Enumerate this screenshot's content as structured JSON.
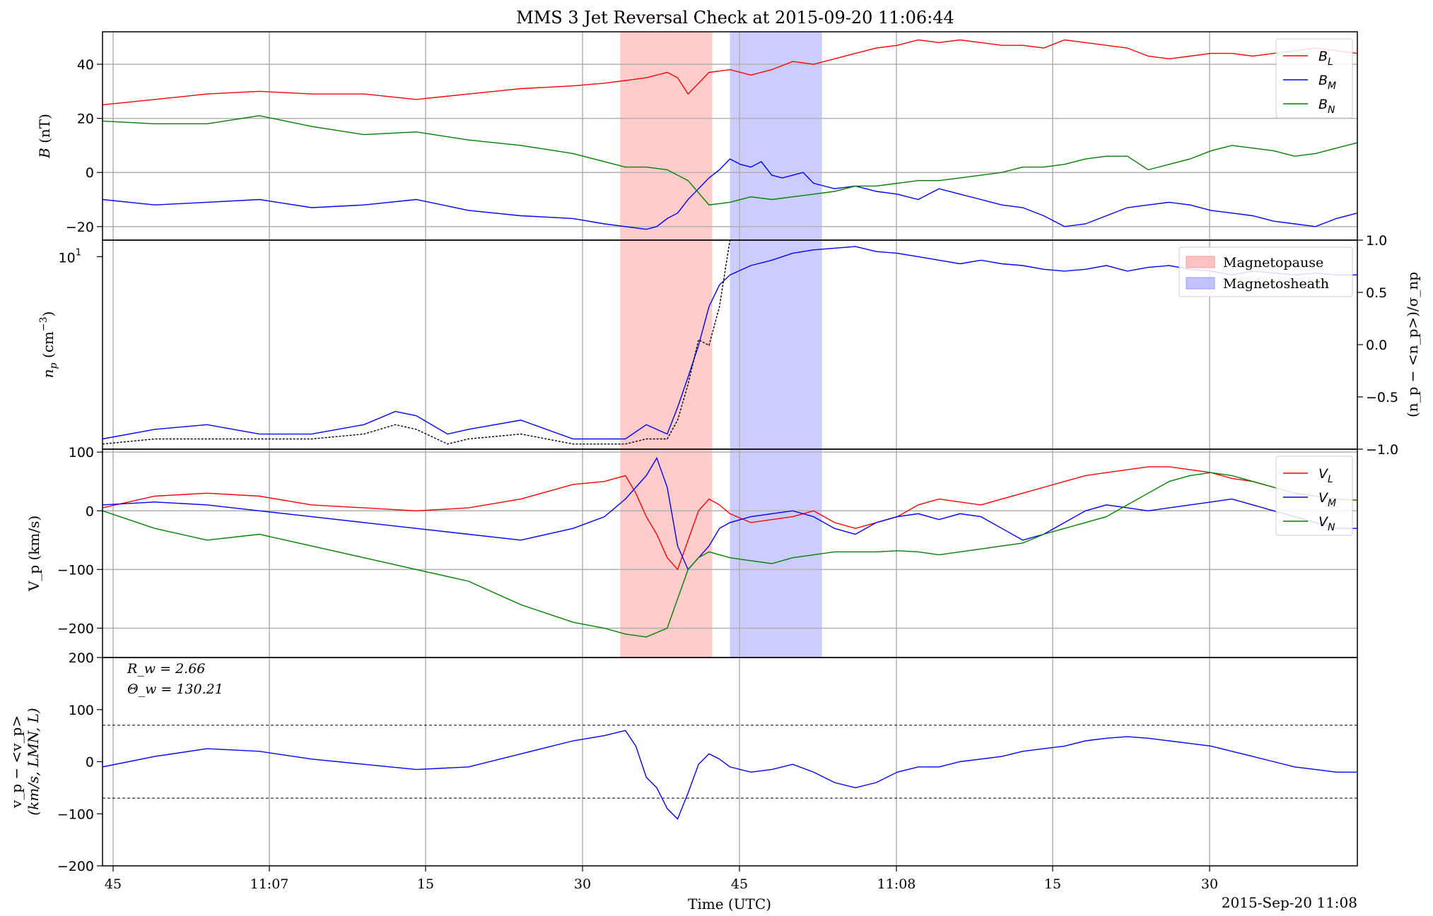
{
  "title": "MMS 3 Jet Reversal Check at 2015-09-20 11:06:44",
  "xlabel": "Time (UTC)",
  "date_label": "2015-Sep-20 11:08",
  "x_ticks": [
    "45",
    "11:07",
    "15",
    "30",
    "45",
    "11:08",
    "15",
    "30"
  ],
  "colors": {
    "L": "#ff0000",
    "M": "#0000ff",
    "N": "#008000",
    "density_ref": "#000000",
    "magnetopause": "#ff9999",
    "magnetosheath": "#9999ff"
  },
  "regions": [
    {
      "name": "Magnetopause",
      "start_s": 49.5,
      "end_s": 58.3
    },
    {
      "name": "Magnetosheath",
      "start_s": 60.0,
      "end_s": 68.8
    }
  ],
  "chart_data": [
    {
      "type": "line",
      "panel": "magnetic-field",
      "ylabel": "B (nT)",
      "ylim": [
        -25,
        52
      ],
      "y_ticks": [
        "40",
        "20",
        "0",
        "−20"
      ],
      "legend": {
        "placement": "top-right",
        "entries": [
          "B_L",
          "B_M",
          "B_N"
        ]
      },
      "x_units": "seconds after 11:06:44",
      "series": [
        {
          "name": "B_L",
          "x": [
            0,
            5,
            10,
            15,
            20,
            25,
            30,
            35,
            40,
            45,
            48,
            50,
            52,
            54,
            55,
            56,
            58,
            60,
            62,
            64,
            66,
            68,
            70,
            72,
            74,
            76,
            78,
            80,
            82,
            84,
            86,
            88,
            90,
            92,
            94,
            96,
            98,
            100,
            102,
            104,
            106,
            108,
            110,
            112,
            114,
            116,
            118,
            120
          ],
          "y": [
            25,
            27,
            29,
            30,
            29,
            29,
            27,
            29,
            31,
            32,
            33,
            34,
            35,
            37,
            35,
            29,
            37,
            38,
            36,
            38,
            41,
            40,
            42,
            44,
            46,
            47,
            49,
            48,
            49,
            48,
            47,
            47,
            46,
            49,
            48,
            47,
            46,
            43,
            42,
            43,
            44,
            44,
            43,
            44,
            45,
            46,
            45,
            44
          ]
        },
        {
          "name": "B_M",
          "x": [
            0,
            5,
            10,
            15,
            20,
            25,
            30,
            35,
            40,
            45,
            48,
            50,
            52,
            53,
            54,
            55,
            56,
            57,
            58,
            59,
            60,
            61,
            62,
            63,
            64,
            65,
            66,
            67,
            68,
            70,
            72,
            74,
            76,
            78,
            80,
            82,
            84,
            86,
            88,
            90,
            92,
            94,
            96,
            98,
            100,
            102,
            104,
            106,
            108,
            110,
            112,
            114,
            116,
            118,
            120
          ],
          "y": [
            -10,
            -12,
            -11,
            -10,
            -13,
            -12,
            -10,
            -14,
            -16,
            -17,
            -19,
            -20,
            -21,
            -20,
            -17,
            -15,
            -10,
            -6,
            -2,
            1,
            5,
            3,
            2,
            4,
            -1,
            -2,
            -1,
            0,
            -4,
            -6,
            -5,
            -7,
            -8,
            -10,
            -6,
            -8,
            -10,
            -12,
            -13,
            -16,
            -20,
            -19,
            -16,
            -13,
            -12,
            -11,
            -12,
            -14,
            -15,
            -16,
            -18,
            -19,
            -20,
            -17,
            -15
          ]
        },
        {
          "name": "B_N",
          "x": [
            0,
            5,
            10,
            15,
            20,
            25,
            30,
            35,
            40,
            45,
            48,
            50,
            52,
            54,
            56,
            58,
            60,
            62,
            64,
            66,
            68,
            70,
            72,
            74,
            76,
            78,
            80,
            82,
            84,
            86,
            88,
            90,
            92,
            94,
            96,
            98,
            100,
            102,
            104,
            106,
            108,
            110,
            112,
            114,
            116,
            118,
            120
          ],
          "y": [
            19,
            18,
            18,
            21,
            17,
            14,
            15,
            12,
            10,
            7,
            4,
            2,
            2,
            1,
            -3,
            -12,
            -11,
            -9,
            -10,
            -9,
            -8,
            -7,
            -5,
            -5,
            -4,
            -3,
            -3,
            -2,
            -1,
            0,
            2,
            2,
            3,
            5,
            6,
            6,
            1,
            3,
            5,
            8,
            10,
            9,
            8,
            6,
            7,
            9,
            11
          ]
        }
      ]
    },
    {
      "type": "line",
      "panel": "density",
      "ylabel": "n_p (cm^-3)",
      "ylabel_right": "(n_p − <n_p>)/σ_np",
      "y_scale": "log",
      "ylim": [
        3.3,
        11.0
      ],
      "y_ticks_left": [
        "10^1"
      ],
      "ylim_right": [
        -1.0,
        1.0
      ],
      "y_ticks_right": [
        "1.0",
        "0.5",
        "0.0",
        "−0.5",
        "−1.0"
      ],
      "legend": {
        "placement": "top-right",
        "entries": [
          "Magnetopause",
          "Magnetosheath"
        ]
      },
      "x_units": "seconds after 11:06:44",
      "series": [
        {
          "name": "n_p",
          "x": [
            0,
            5,
            10,
            15,
            20,
            25,
            28,
            30,
            33,
            35,
            40,
            45,
            48,
            50,
            52,
            54,
            55,
            56,
            57,
            58,
            59,
            60,
            62,
            64,
            66,
            68,
            70,
            72,
            74,
            76,
            78,
            80,
            82,
            84,
            86,
            88,
            90,
            92,
            94,
            96,
            98,
            100,
            102,
            104,
            106,
            108,
            110,
            112,
            114,
            116,
            118,
            120
          ],
          "y": [
            3.5,
            3.7,
            3.8,
            3.6,
            3.6,
            3.8,
            4.1,
            4.0,
            3.6,
            3.7,
            3.9,
            3.5,
            3.5,
            3.5,
            3.8,
            3.6,
            4.2,
            5.0,
            6.0,
            7.5,
            8.5,
            9.0,
            9.5,
            9.8,
            10.2,
            10.4,
            10.5,
            10.6,
            10.3,
            10.2,
            10.0,
            9.8,
            9.6,
            9.8,
            9.6,
            9.5,
            9.3,
            9.2,
            9.3,
            9.5,
            9.2,
            9.4,
            9.5,
            9.3,
            9.2,
            9.0,
            9.2,
            9.1,
            9.0,
            9.1,
            9.0,
            9.0
          ]
        },
        {
          "name": "density_ref",
          "x": [
            0,
            5,
            10,
            15,
            20,
            25,
            28,
            30,
            33,
            35,
            40,
            45,
            48,
            50,
            52,
            54,
            55,
            56,
            57,
            58,
            59,
            60
          ],
          "y": [
            3.4,
            3.5,
            3.5,
            3.5,
            3.5,
            3.6,
            3.8,
            3.7,
            3.4,
            3.5,
            3.6,
            3.4,
            3.4,
            3.4,
            3.5,
            3.5,
            3.9,
            4.8,
            6.2,
            6.0,
            7.5,
            11.0
          ]
        }
      ]
    },
    {
      "type": "line",
      "panel": "velocity",
      "ylabel": "V_p (km/s)",
      "ylim": [
        -250,
        105
      ],
      "y_ticks": [
        "100",
        "0",
        "−100",
        "−200"
      ],
      "legend": {
        "placement": "top-right",
        "entries": [
          "V_L",
          "V_M",
          "V_N"
        ]
      },
      "x_units": "seconds after 11:06:44",
      "series": [
        {
          "name": "V_L",
          "x": [
            0,
            5,
            10,
            15,
            20,
            25,
            30,
            35,
            40,
            45,
            48,
            50,
            51,
            52,
            53,
            54,
            55,
            56,
            57,
            58,
            59,
            60,
            62,
            64,
            66,
            68,
            70,
            72,
            74,
            76,
            78,
            80,
            82,
            84,
            86,
            88,
            90,
            92,
            94,
            96,
            98,
            100,
            102,
            104,
            106,
            108,
            110,
            112,
            114,
            116,
            118,
            120
          ],
          "y": [
            5,
            25,
            30,
            25,
            10,
            5,
            0,
            5,
            20,
            45,
            50,
            60,
            30,
            -10,
            -40,
            -80,
            -100,
            -50,
            0,
            20,
            10,
            -5,
            -20,
            -15,
            -10,
            0,
            -20,
            -30,
            -20,
            -10,
            10,
            20,
            15,
            10,
            20,
            30,
            40,
            50,
            60,
            65,
            70,
            75,
            75,
            70,
            65,
            55,
            50,
            40,
            30,
            25,
            20,
            18
          ]
        },
        {
          "name": "V_M",
          "x": [
            0,
            5,
            10,
            15,
            20,
            25,
            30,
            35,
            40,
            45,
            48,
            50,
            51,
            52,
            53,
            54,
            55,
            56,
            57,
            58,
            59,
            60,
            62,
            64,
            66,
            68,
            70,
            72,
            74,
            76,
            78,
            80,
            82,
            84,
            86,
            88,
            90,
            92,
            94,
            96,
            98,
            100,
            102,
            104,
            106,
            108,
            110,
            112,
            114,
            116,
            118,
            120
          ],
          "y": [
            10,
            15,
            10,
            0,
            -10,
            -20,
            -30,
            -40,
            -50,
            -30,
            -10,
            20,
            40,
            60,
            90,
            40,
            -60,
            -100,
            -80,
            -60,
            -30,
            -20,
            -10,
            -5,
            0,
            -10,
            -30,
            -40,
            -20,
            -10,
            -5,
            -15,
            -5,
            -10,
            -30,
            -50,
            -40,
            -20,
            0,
            10,
            5,
            0,
            5,
            10,
            15,
            20,
            10,
            0,
            -10,
            -20,
            -30,
            -30
          ]
        },
        {
          "name": "V_N",
          "x": [
            0,
            5,
            10,
            15,
            20,
            25,
            30,
            35,
            40,
            45,
            48,
            50,
            52,
            54,
            55,
            56,
            57,
            58,
            59,
            60,
            62,
            64,
            66,
            68,
            70,
            72,
            74,
            76,
            78,
            80,
            82,
            84,
            86,
            88,
            90,
            92,
            94,
            96,
            98,
            100,
            102,
            104,
            106,
            108,
            110,
            112,
            114,
            116,
            118,
            120
          ],
          "y": [
            0,
            -30,
            -50,
            -40,
            -60,
            -80,
            -100,
            -120,
            -160,
            -190,
            -200,
            -210,
            -215,
            -200,
            -150,
            -100,
            -80,
            -70,
            -75,
            -80,
            -85,
            -90,
            -80,
            -75,
            -70,
            -70,
            -70,
            -68,
            -70,
            -75,
            -70,
            -65,
            -60,
            -55,
            -40,
            -30,
            -20,
            -10,
            10,
            30,
            50,
            60,
            65,
            60,
            50,
            40,
            30,
            25,
            20,
            18
          ]
        }
      ]
    },
    {
      "type": "line",
      "panel": "velocity-difference",
      "ylabel": "v_p − <v_p>",
      "ylabel_line2": "(km/s, LMN, L)",
      "ylim": [
        -200,
        200
      ],
      "y_ticks": [
        "200",
        "100",
        "0",
        "−100",
        "−200"
      ],
      "annotations": [
        "R_w = 2.66",
        "Θ_w = 130.21"
      ],
      "threshold_lines": [
        70,
        -70
      ],
      "x_units": "seconds after 11:06:44",
      "series": [
        {
          "name": "dv",
          "x": [
            0,
            5,
            10,
            15,
            20,
            25,
            30,
            35,
            40,
            45,
            48,
            50,
            51,
            52,
            53,
            54,
            55,
            56,
            57,
            58,
            59,
            60,
            62,
            64,
            66,
            68,
            70,
            72,
            74,
            76,
            78,
            80,
            82,
            84,
            86,
            88,
            90,
            92,
            94,
            96,
            98,
            100,
            102,
            104,
            106,
            108,
            110,
            112,
            114,
            116,
            118,
            120
          ],
          "y": [
            -10,
            10,
            25,
            20,
            5,
            -5,
            -15,
            -10,
            15,
            40,
            50,
            60,
            30,
            -30,
            -50,
            -90,
            -110,
            -60,
            -5,
            15,
            5,
            -10,
            -20,
            -15,
            -5,
            -20,
            -40,
            -50,
            -40,
            -20,
            -10,
            -10,
            0,
            5,
            10,
            20,
            25,
            30,
            40,
            45,
            48,
            45,
            40,
            35,
            30,
            20,
            10,
            0,
            -10,
            -15,
            -20,
            -20
          ]
        }
      ]
    }
  ]
}
